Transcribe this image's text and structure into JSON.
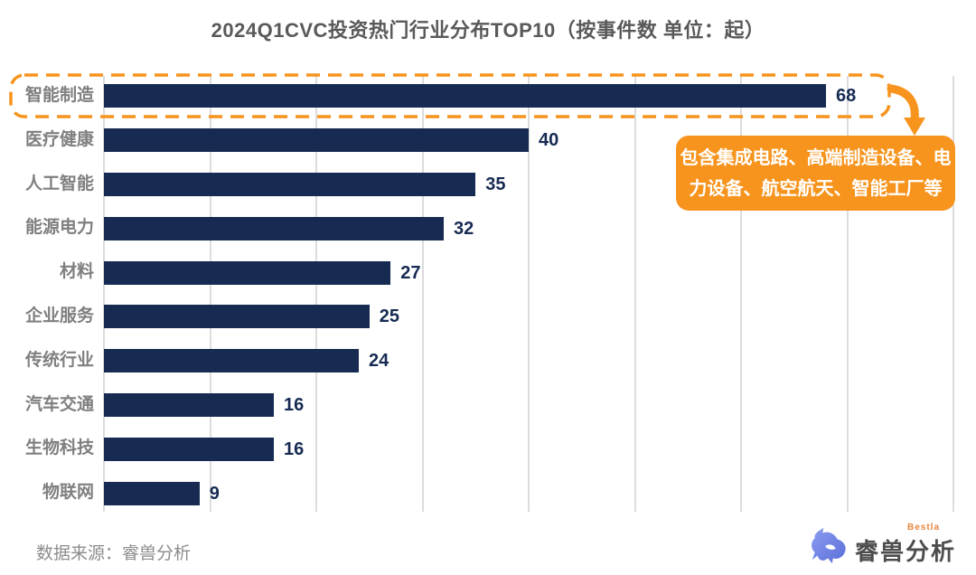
{
  "title": "2024Q1CVC投资热门行业分布TOP10（按事件数 单位：起）",
  "chart_data": {
    "type": "bar",
    "orientation": "horizontal",
    "title": "2024Q1CVC投资热门行业分布TOP10（按事件数 单位：起）",
    "categories": [
      "智能制造",
      "医疗健康",
      "人工智能",
      "能源电力",
      "材料",
      "企业服务",
      "传统行业",
      "汽车交通",
      "生物科技",
      "物联网"
    ],
    "values": [
      68,
      40,
      35,
      32,
      27,
      25,
      24,
      16,
      16,
      9
    ],
    "xlim": [
      0,
      80
    ],
    "grid_step": 10,
    "grid": true,
    "legend": false,
    "highlight_index": 0,
    "bar_color": "#162a52"
  },
  "annotation": {
    "line1": "包含集成电路、高端制造设备、电",
    "line2": "力设备、航空航天、智能工厂等"
  },
  "footer": {
    "source": "数据来源：睿兽分析"
  },
  "logo": {
    "wordmark": "睿兽分析",
    "subtext": "Bestla"
  },
  "colors": {
    "accent_orange": "#F7941D",
    "navy": "#162a52",
    "label_gray": "#7f7f7f",
    "title_gray": "#595959",
    "grid_gray": "#dcdcdc"
  }
}
